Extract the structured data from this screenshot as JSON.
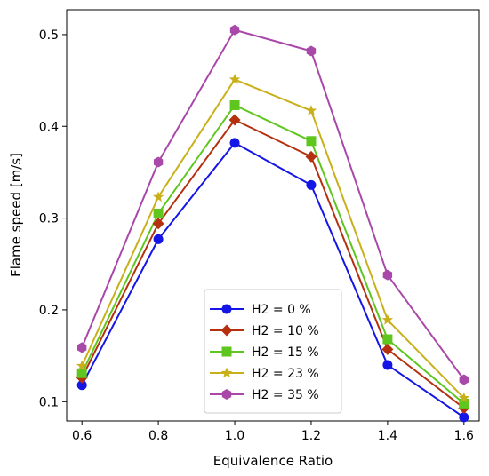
{
  "chart_data": {
    "type": "line",
    "title": "",
    "xlabel": "Equivalence Ratio",
    "ylabel": "Flame speed [m/s]",
    "x": [
      0.6,
      0.8,
      1.0,
      1.2,
      1.4,
      1.6
    ],
    "xlim": [
      0.56,
      1.64
    ],
    "ylim": [
      0.079,
      0.527
    ],
    "x_ticks": [
      "0.6",
      "0.8",
      "1.0",
      "1.2",
      "1.4",
      "1.6"
    ],
    "y_ticks": [
      "0.1",
      "0.2",
      "0.3",
      "0.4",
      "0.5"
    ],
    "grid": false,
    "legend_position": "bottom-center",
    "series": [
      {
        "name": "H2 = 0 %",
        "color": "#1515e6",
        "marker": "circle",
        "values": [
          0.118,
          0.277,
          0.382,
          0.336,
          0.14,
          0.083
        ]
      },
      {
        "name": "H2 = 10 %",
        "color": "#b5300f",
        "marker": "diamond",
        "values": [
          0.126,
          0.294,
          0.407,
          0.367,
          0.157,
          0.093
        ]
      },
      {
        "name": "H2 = 15 %",
        "color": "#5ec61f",
        "marker": "square",
        "values": [
          0.131,
          0.305,
          0.423,
          0.384,
          0.168,
          0.098
        ]
      },
      {
        "name": "H2 = 23 %",
        "color": "#c9b01a",
        "marker": "star",
        "values": [
          0.139,
          0.323,
          0.451,
          0.417,
          0.189,
          0.104
        ]
      },
      {
        "name": "H2 = 35 %",
        "color": "#a848a8",
        "marker": "hexagon",
        "values": [
          0.159,
          0.361,
          0.505,
          0.482,
          0.238,
          0.124
        ]
      }
    ]
  }
}
